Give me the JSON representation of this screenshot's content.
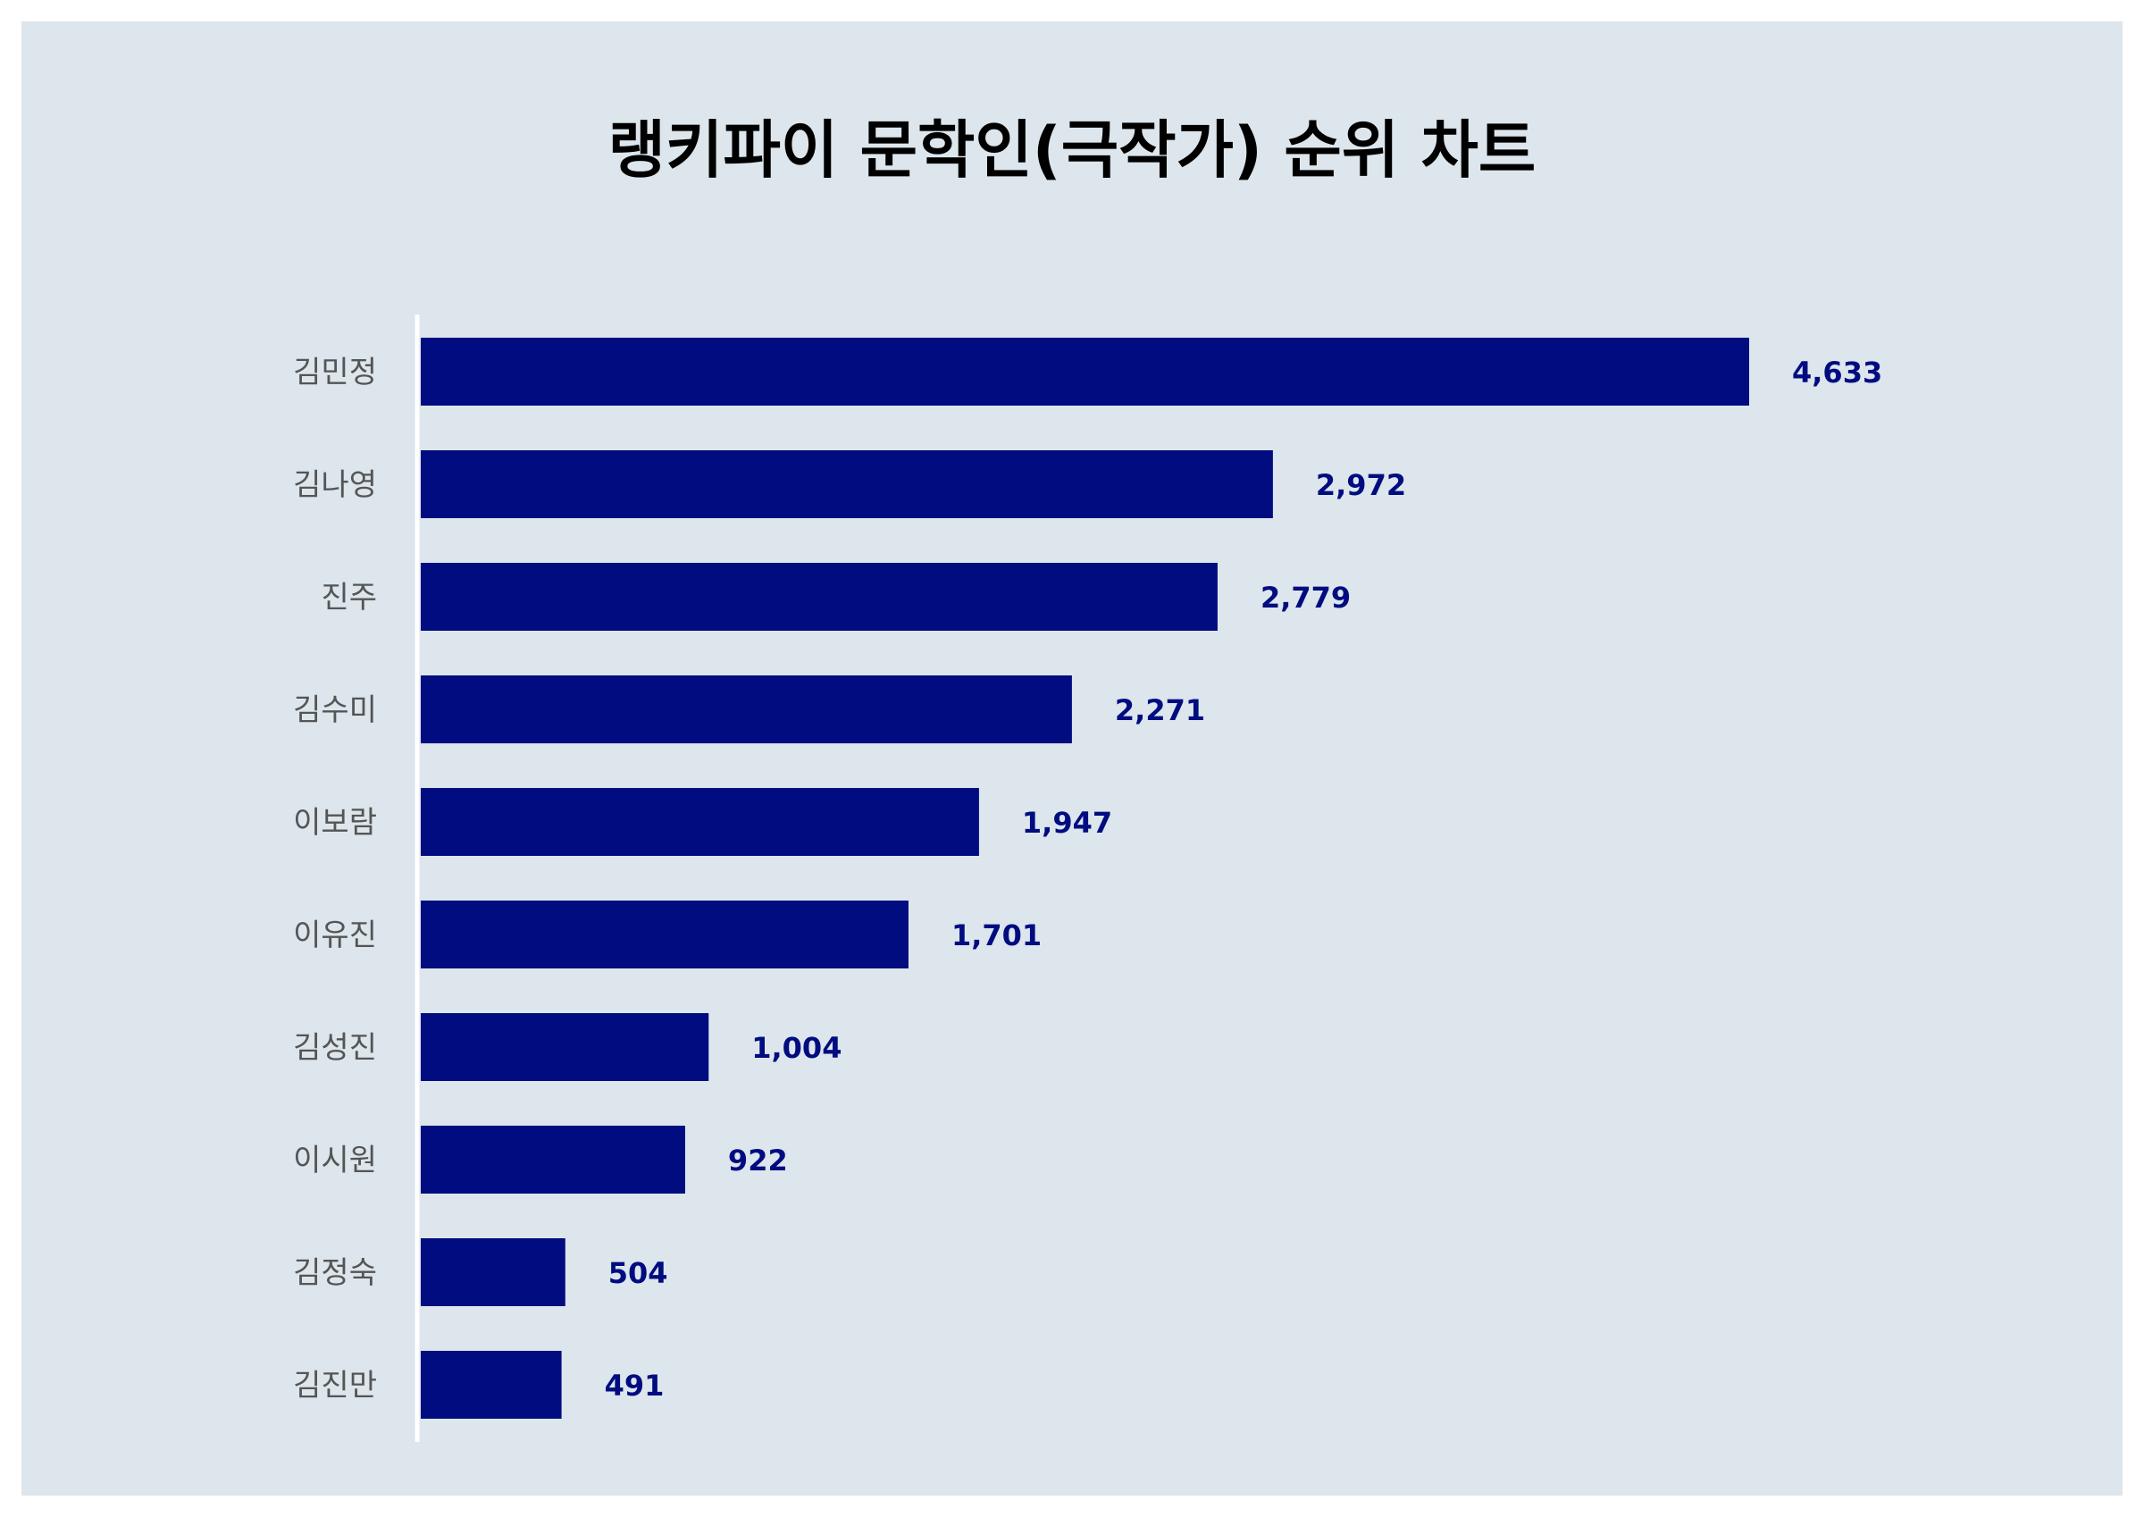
{
  "chart_data": {
    "type": "bar",
    "orientation": "horizontal",
    "title": "랭키파이 문학인(극작가) 순위 차트",
    "xlabel": "",
    "ylabel": "",
    "categories": [
      "김민정",
      "김나영",
      "진주",
      "김수미",
      "이보람",
      "이유진",
      "김성진",
      "이시원",
      "김정숙",
      "김진만"
    ],
    "values": [
      4633,
      2972,
      2779,
      2271,
      1947,
      1701,
      1004,
      922,
      504,
      491
    ],
    "value_labels": [
      "4,633",
      "2,972",
      "2,779",
      "2,271",
      "1,947",
      "1,701",
      "1,004",
      "922",
      "504",
      "491"
    ],
    "xlim": [
      0,
      4633
    ],
    "grid": false,
    "legend": "none",
    "colors": {
      "bar": "#000c80",
      "value_label": "#000c80",
      "background": "#dce6ec",
      "axis_line": "#ffffff",
      "category_label": "#555555"
    }
  }
}
